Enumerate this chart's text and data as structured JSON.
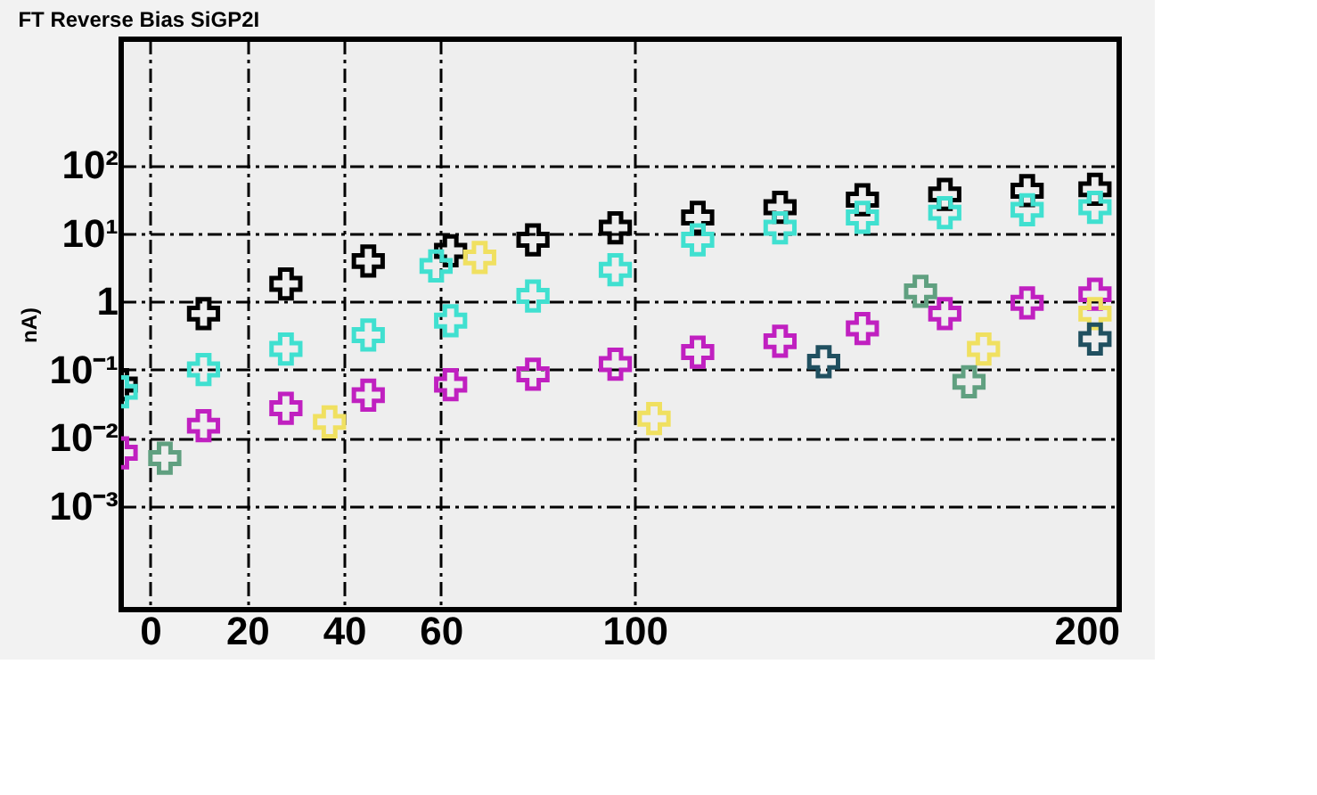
{
  "chart_data": {
    "type": "scatter",
    "title": "FT Reverse Bias SiGP2I",
    "ylabel": "nA)",
    "xlim": [
      -6,
      200
    ],
    "xticks": [
      0,
      20,
      40,
      60,
      100,
      200
    ],
    "ylim": [
      3e-05,
      7000
    ],
    "log": "y",
    "yticks": [
      {
        "value": 0.001,
        "label": "10⁻³"
      },
      {
        "value": 0.01,
        "label": "10⁻²"
      },
      {
        "value": 0.1,
        "label": "10⁻¹"
      },
      {
        "value": 1,
        "label": "1"
      },
      {
        "value": 10,
        "label": "10¹"
      },
      {
        "value": 100,
        "label": "10²"
      }
    ],
    "grid": true,
    "marker": "cross",
    "series": [
      {
        "color": "#000000",
        "x": [
          -6,
          11,
          28,
          45,
          62,
          79,
          96,
          113,
          130,
          147,
          164,
          181,
          195
        ],
        "values": [
          0.06,
          0.66,
          1.8,
          3.9,
          5.5,
          8,
          12,
          17,
          24,
          31,
          37,
          42,
          44
        ]
      },
      {
        "color": "#40e0d0",
        "x": [
          -6,
          11,
          28,
          45,
          59,
          62,
          79,
          96,
          113,
          130,
          147,
          164,
          181,
          195
        ],
        "values": [
          0.047,
          0.1,
          0.2,
          0.32,
          3.3,
          0.52,
          1.2,
          2.9,
          8,
          12,
          17,
          20,
          22,
          24
        ]
      },
      {
        "color": "#c020c0",
        "x": [
          -6,
          11,
          28,
          45,
          62,
          79,
          96,
          113,
          130,
          147,
          164,
          181,
          195
        ],
        "values": [
          0.006,
          0.015,
          0.027,
          0.042,
          0.06,
          0.085,
          0.12,
          0.18,
          0.26,
          0.4,
          0.66,
          0.95,
          1.27
        ]
      },
      {
        "color": "#f0e060",
        "x": [
          37,
          68,
          104,
          172,
          195
        ],
        "values": [
          0.017,
          4.4,
          0.019,
          0.2,
          0.66
        ]
      },
      {
        "color": "#60a080",
        "x": [
          3,
          159,
          169
        ],
        "values": [
          0.005,
          1.4,
          0.066
        ]
      },
      {
        "color": "#205060",
        "x": [
          139,
          195
        ],
        "values": [
          0.13,
          0.28
        ]
      }
    ]
  }
}
